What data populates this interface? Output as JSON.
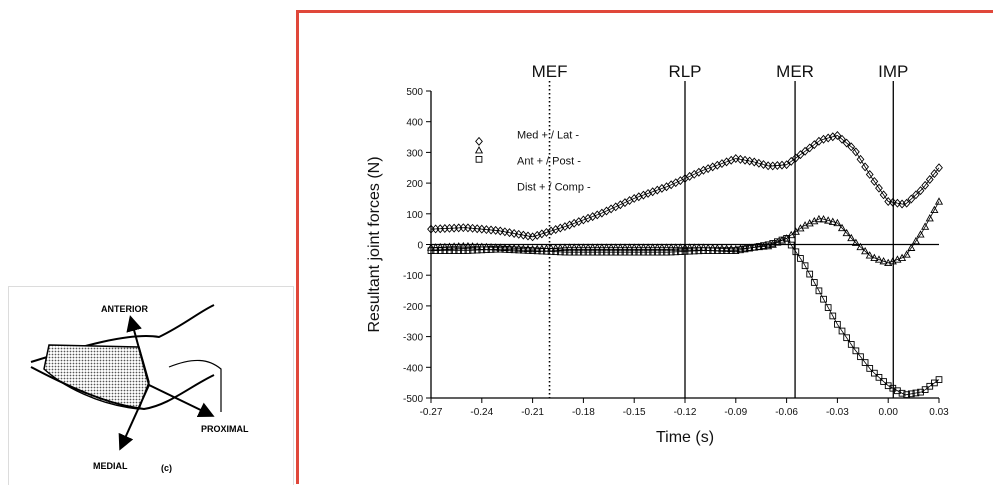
{
  "diagram": {
    "labels": {
      "anterior": "ANTERIOR",
      "medial": "MEDIAL",
      "proximal": "PROXIMAL",
      "panel": "(c)"
    }
  },
  "chart_data": {
    "type": "line",
    "title": "",
    "xlabel": "Time (s)",
    "ylabel": "Resultant joint forces (N)",
    "xlim": [
      -0.27,
      0.03
    ],
    "ylim": [
      -500,
      500
    ],
    "x_tick_labels": [
      "-0.27",
      "-0.24",
      "-0.21",
      "-0.18",
      "-0.15",
      "-0.12",
      "-0.09",
      "-0.06",
      "-0.03",
      "0.00",
      "0.03"
    ],
    "y_tick_labels": [
      "500",
      "400",
      "300",
      "200",
      "100",
      "0",
      "-100",
      "-200",
      "-300",
      "-400",
      "-500"
    ],
    "event_lines": [
      {
        "label": "MEF",
        "x": -0.2,
        "style": "dotted"
      },
      {
        "label": "RLP",
        "x": -0.12,
        "style": "solid"
      },
      {
        "label": "MER",
        "x": -0.055,
        "style": "solid"
      },
      {
        "label": "IMP",
        "x": 0.003,
        "style": "solid"
      }
    ],
    "legend_text": [
      "Med + / Lat -",
      "Ant + / Post -",
      "Dist + / Comp -"
    ],
    "legend_position": "top-left",
    "series": [
      {
        "marker": "diamond",
        "x": [
          -0.27,
          -0.25,
          -0.23,
          -0.21,
          -0.19,
          -0.17,
          -0.15,
          -0.13,
          -0.11,
          -0.09,
          -0.08,
          -0.07,
          -0.06,
          -0.05,
          -0.04,
          -0.03,
          -0.02,
          -0.01,
          0.0,
          0.01,
          0.02,
          0.03
        ],
        "y": [
          50,
          55,
          45,
          25,
          60,
          100,
          150,
          190,
          240,
          280,
          270,
          255,
          260,
          300,
          340,
          355,
          310,
          220,
          140,
          130,
          180,
          250
        ]
      },
      {
        "marker": "triangle",
        "x": [
          -0.27,
          -0.25,
          -0.23,
          -0.21,
          -0.19,
          -0.17,
          -0.15,
          -0.13,
          -0.11,
          -0.09,
          -0.07,
          -0.06,
          -0.05,
          -0.04,
          -0.03,
          -0.02,
          -0.01,
          0.0,
          0.01,
          0.02,
          0.03
        ],
        "y": [
          -10,
          -5,
          -10,
          -15,
          -10,
          -10,
          -10,
          -10,
          -10,
          -15,
          -5,
          20,
          60,
          85,
          70,
          10,
          -40,
          -60,
          -40,
          40,
          140
        ]
      },
      {
        "marker": "square",
        "x": [
          -0.27,
          -0.25,
          -0.23,
          -0.21,
          -0.19,
          -0.17,
          -0.15,
          -0.13,
          -0.11,
          -0.09,
          -0.07,
          -0.06,
          -0.05,
          -0.04,
          -0.03,
          -0.02,
          -0.01,
          0.0,
          0.01,
          0.02,
          0.03
        ],
        "y": [
          -20,
          -20,
          -15,
          -20,
          -25,
          -25,
          -25,
          -25,
          -20,
          -20,
          0,
          20,
          -60,
          -160,
          -260,
          -340,
          -410,
          -460,
          -490,
          -480,
          -440
        ]
      }
    ]
  }
}
